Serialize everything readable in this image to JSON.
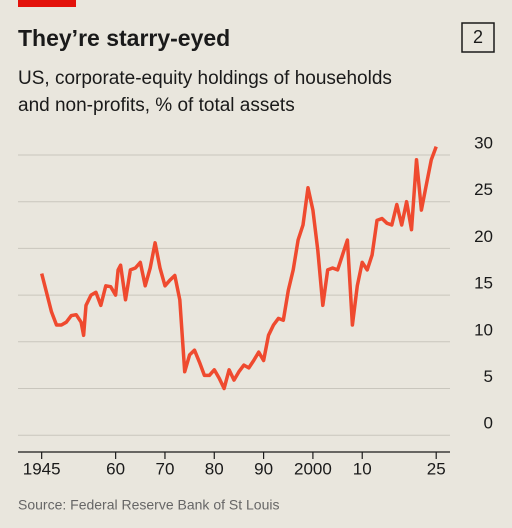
{
  "chart_data": {
    "type": "line",
    "title": "They’re starry-eyed",
    "chart_number": "2",
    "subtitle": [
      "US, corporate-equity holdings of households",
      "and non-profits, % of total assets"
    ],
    "source": "Source: Federal Reserve Bank of St Louis",
    "color": "#ef4a2f",
    "x": [
      1945,
      1947,
      1948,
      1949,
      1950,
      1951,
      1952,
      1953,
      1953.5,
      1954,
      1955,
      1956,
      1957,
      1958,
      1959,
      1960,
      1960.5,
      1961,
      1962,
      1963,
      1964,
      1965,
      1966,
      1967,
      1968,
      1969,
      1970,
      1971,
      1972,
      1973,
      1974,
      1975,
      1976,
      1977,
      1978,
      1979,
      1980,
      1981,
      1982,
      1983,
      1984,
      1985,
      1986,
      1987,
      1988,
      1989,
      1990,
      1991,
      1992,
      1993,
      1994,
      1995,
      1996,
      1997,
      1998,
      1999,
      2000,
      2001,
      2002,
      2003,
      2004,
      2005,
      2006,
      2007,
      2008,
      2009,
      2010,
      2011,
      2012,
      2013,
      2014,
      2015,
      2016,
      2017,
      2018,
      2019,
      2020,
      2021,
      2022,
      2023,
      2024,
      2025
    ],
    "values": [
      17.3,
      13.2,
      11.8,
      11.8,
      12.1,
      12.8,
      12.9,
      12.1,
      10.7,
      13.9,
      15,
      15.3,
      13.9,
      16,
      15.9,
      15,
      17.7,
      18.2,
      14.5,
      17.7,
      17.9,
      18.5,
      16,
      17.9,
      20.6,
      17.9,
      16,
      16.6,
      17.1,
      14.5,
      6.8,
      8.6,
      9.1,
      7.8,
      6.4,
      6.4,
      7,
      6.1,
      5,
      7,
      5.9,
      6.8,
      7.5,
      7.2,
      8,
      8.9,
      8,
      10.7,
      11.8,
      12.5,
      12.3,
      15.5,
      17.7,
      20.9,
      22.5,
      26.5,
      24.1,
      19.8,
      13.9,
      17.7,
      17.9,
      17.7,
      19.3,
      20.9,
      11.8,
      16,
      18.5,
      17.7,
      19.3,
      23,
      23.2,
      22.7,
      22.5,
      24.7,
      22.5,
      25,
      22,
      29.5,
      24.1,
      26.8,
      29.5,
      30.9
    ],
    "xlim": [
      1940,
      2028
    ],
    "xticks": [
      1945,
      {
        "value": 1960,
        "label": "60"
      },
      {
        "value": 1970,
        "label": "70"
      },
      {
        "value": 1980,
        "label": "80"
      },
      {
        "value": 1990,
        "label": "90"
      },
      2000,
      {
        "value": 2010,
        "label": "10"
      },
      {
        "value": 2025,
        "label": "25"
      }
    ],
    "ylim": [
      -1.8,
      30
    ],
    "yticks": [
      0,
      5,
      10,
      15,
      20,
      25,
      30
    ],
    "grid": true
  }
}
